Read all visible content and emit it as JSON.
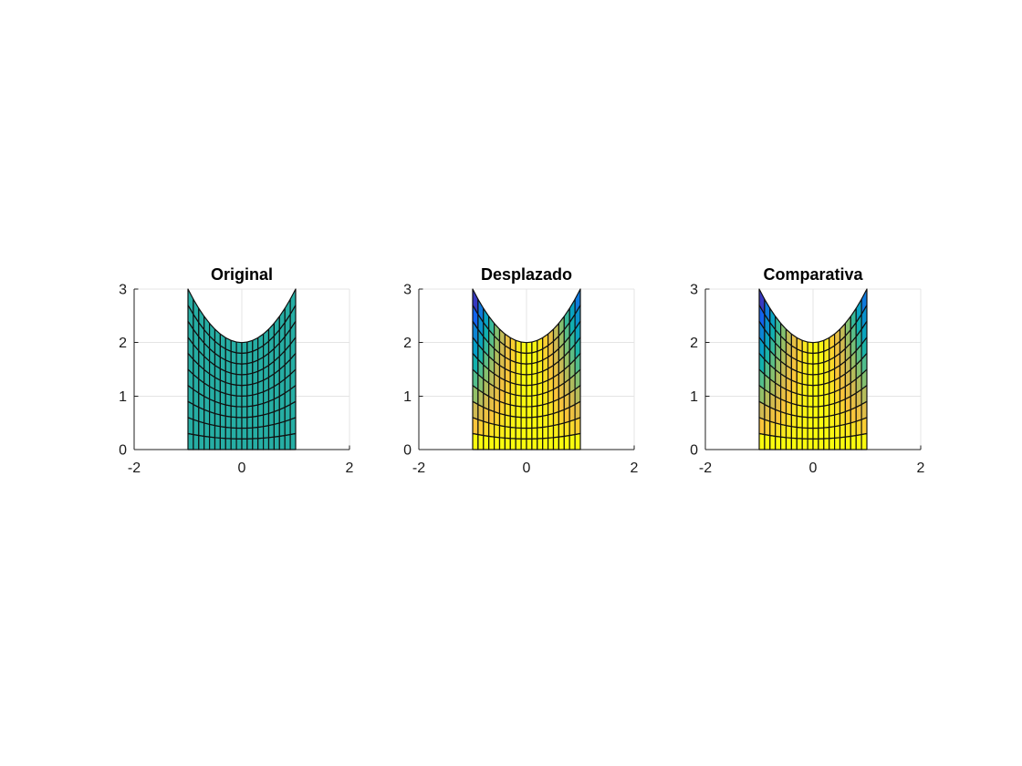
{
  "figure": {
    "background": "#ffffff"
  },
  "chart_data": {
    "type": "heatmap",
    "subtype": "matlab-2d-quad-mesh-surface",
    "description": "Three MATLAB-style subplots of a parametric quad mesh over the region -1<=x<=1, 0<=y<=2+x^2. First mesh is uniformly teal; second and third are colored with the parula colormap by a displacement value.",
    "subplots": [
      {
        "title": "Original",
        "coloring": "uniform",
        "face_color": "#26aea4"
      },
      {
        "title": "Desplazado",
        "coloring": "colormap"
      },
      {
        "title": "Comparativa",
        "coloring": "colormap"
      }
    ],
    "axes": {
      "xlim": [
        -2,
        2
      ],
      "ylim": [
        0,
        3
      ],
      "xticks": [
        -2,
        0,
        2
      ],
      "xtick_labels": [
        "-2",
        "0",
        "2"
      ],
      "yticks": [
        0,
        1,
        2,
        3
      ],
      "ytick_labels": [
        "0",
        "1",
        "2",
        "3"
      ],
      "grid": true,
      "box": false,
      "grid_color": "#e4e4e4",
      "spine_color": "#1f1f1f",
      "tick_label_color": "#1a1a1a",
      "title_color": "#000000"
    },
    "mesh": {
      "x_range": [
        -1,
        1
      ],
      "n_cols": 20,
      "n_rows": 10,
      "bottom_y": 0,
      "top_curve": "y = 2 + x^2",
      "top_curve_coeffs": {
        "constant": 2,
        "x2": 1
      },
      "edge_color": "#101010",
      "edge_width": 1.2
    },
    "color_model": {
      "colormap": "parula",
      "value_formula": "C = -(v * x^2)  with  y = v*(2+x^2),  0<=v<=1",
      "caxis": [
        -1,
        0
      ],
      "shading": "flat",
      "stops": [
        {
          "t": 0.0,
          "color": "#352a87"
        },
        {
          "t": 0.1,
          "color": "#3639c1"
        },
        {
          "t": 0.2,
          "color": "#1263ee"
        },
        {
          "t": 0.3,
          "color": "#0c84d4"
        },
        {
          "t": 0.4,
          "color": "#069ec7"
        },
        {
          "t": 0.5,
          "color": "#12b1ad"
        },
        {
          "t": 0.6,
          "color": "#53be8b"
        },
        {
          "t": 0.7,
          "color": "#93c068"
        },
        {
          "t": 0.8,
          "color": "#d0ba51"
        },
        {
          "t": 0.9,
          "color": "#fac43b"
        },
        {
          "t": 1.0,
          "color": "#f9fb0e"
        }
      ]
    }
  }
}
